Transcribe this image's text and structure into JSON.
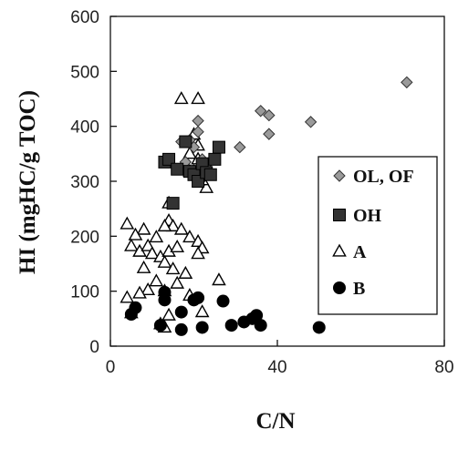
{
  "chart_data": {
    "type": "scatter",
    "title": "",
    "xlabel": "C/N",
    "ylabel": "HI (mgHC/g TOC)",
    "xlim": [
      0,
      80
    ],
    "ylim": [
      0,
      600
    ],
    "xticks": [
      0,
      40,
      80
    ],
    "yticks": [
      0,
      100,
      200,
      300,
      400,
      500,
      600
    ],
    "grid": false,
    "legend_position": "right",
    "series": [
      {
        "name": "OL, OF",
        "marker": "diamond",
        "color": "#9a9a9a",
        "points": [
          [
            71,
            480
          ],
          [
            36,
            428
          ],
          [
            38,
            420
          ],
          [
            48,
            408
          ],
          [
            38,
            386
          ],
          [
            31,
            362
          ],
          [
            21,
            410
          ],
          [
            21,
            390
          ],
          [
            19,
            375
          ],
          [
            17,
            372
          ],
          [
            20,
            362
          ],
          [
            22,
            340
          ],
          [
            18,
            335
          ],
          [
            20,
            320
          ],
          [
            23,
            330
          ],
          [
            22,
            305
          ]
        ]
      },
      {
        "name": "OH",
        "marker": "square",
        "color": "#333333",
        "points": [
          [
            13,
            335
          ],
          [
            14,
            340
          ],
          [
            16,
            322
          ],
          [
            18,
            372
          ],
          [
            19,
            318
          ],
          [
            20,
            312
          ],
          [
            21,
            300
          ],
          [
            22,
            332
          ],
          [
            23,
            316
          ],
          [
            24,
            312
          ],
          [
            25,
            340
          ],
          [
            26,
            362
          ],
          [
            15,
            260
          ]
        ]
      },
      {
        "name": "A",
        "marker": "triangle",
        "color": "#000000",
        "points": [
          [
            17,
            450
          ],
          [
            21,
            450
          ],
          [
            20,
            385
          ],
          [
            21,
            365
          ],
          [
            19,
            350
          ],
          [
            21,
            340
          ],
          [
            22,
            328
          ],
          [
            19,
            318
          ],
          [
            23,
            288
          ],
          [
            22,
            302
          ],
          [
            14,
            260
          ],
          [
            14,
            228
          ],
          [
            15,
            218
          ],
          [
            13,
            218
          ],
          [
            4,
            222
          ],
          [
            8,
            212
          ],
          [
            6,
            202
          ],
          [
            17,
            212
          ],
          [
            19,
            198
          ],
          [
            21,
            190
          ],
          [
            11,
            198
          ],
          [
            5,
            182
          ],
          [
            7,
            172
          ],
          [
            9,
            182
          ],
          [
            10,
            168
          ],
          [
            12,
            162
          ],
          [
            14,
            172
          ],
          [
            16,
            180
          ],
          [
            22,
            178
          ],
          [
            21,
            168
          ],
          [
            13,
            152
          ],
          [
            8,
            142
          ],
          [
            15,
            140
          ],
          [
            18,
            132
          ],
          [
            11,
            118
          ],
          [
            16,
            114
          ],
          [
            9,
            102
          ],
          [
            7,
            96
          ],
          [
            4,
            88
          ],
          [
            13,
            100
          ],
          [
            19,
            92
          ],
          [
            26,
            120
          ],
          [
            22,
            62
          ],
          [
            14,
            56
          ],
          [
            5,
            60
          ],
          [
            12,
            40
          ],
          [
            13,
            34
          ]
        ]
      },
      {
        "name": "B",
        "marker": "circle",
        "color": "#000000",
        "points": [
          [
            5,
            58
          ],
          [
            6,
            70
          ],
          [
            13,
            98
          ],
          [
            13,
            84
          ],
          [
            21,
            88
          ],
          [
            20,
            84
          ],
          [
            27,
            82
          ],
          [
            17,
            62
          ],
          [
            12,
            38
          ],
          [
            17,
            30
          ],
          [
            22,
            34
          ],
          [
            29,
            38
          ],
          [
            32,
            44
          ],
          [
            34,
            50
          ],
          [
            35,
            56
          ],
          [
            36,
            38
          ],
          [
            50,
            34
          ]
        ]
      }
    ]
  }
}
